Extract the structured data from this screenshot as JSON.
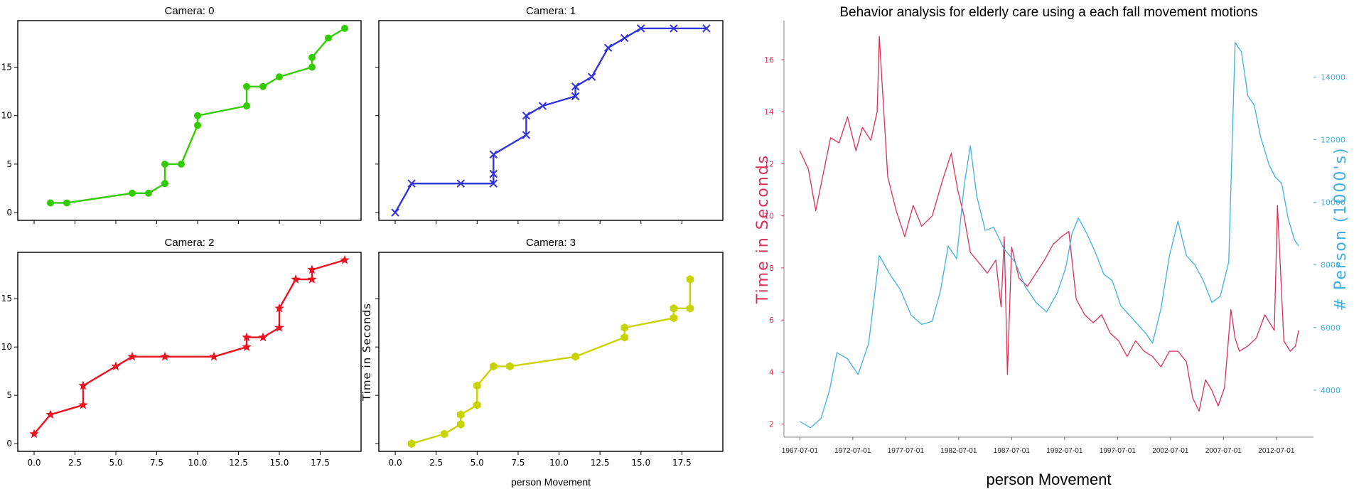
{
  "colors": {
    "green": "#33cc00",
    "blue": "#3333dd",
    "red": "#ee1122",
    "yellow": "#c8d400",
    "crimson": "#d9305a",
    "sky": "#3fb0e0",
    "axis": "#000000"
  },
  "chart_data": [
    {
      "type": "line",
      "title": "Camera: 0",
      "marker": "o",
      "color": "#33cc00",
      "xlim": [
        -1,
        20
      ],
      "ylim": [
        -0.8,
        19.8
      ],
      "xticks": [
        0,
        2.5,
        5,
        7.5,
        10,
        12.5,
        15,
        17.5
      ],
      "yticks": [
        0,
        5,
        10,
        15
      ],
      "ytick_labels": [
        "0",
        "5",
        "10",
        "15"
      ],
      "x": [
        1,
        2,
        6,
        7,
        8,
        8,
        9,
        10,
        10,
        13,
        13,
        14,
        15,
        17,
        17,
        18,
        19
      ],
      "y": [
        1,
        1,
        2,
        2,
        3,
        5,
        5,
        9,
        10,
        11,
        13,
        13,
        14,
        15,
        16,
        18,
        19
      ]
    },
    {
      "type": "line",
      "title": "Camera: 1",
      "marker": "x",
      "color": "#3333dd",
      "xlim": [
        -1,
        20
      ],
      "ylim": [
        -0.8,
        19.8
      ],
      "xticks": [
        0,
        2.5,
        5,
        7.5,
        10,
        12.5,
        15,
        17.5
      ],
      "yticks": [
        0,
        5,
        10,
        15
      ],
      "x": [
        0,
        1,
        4,
        6,
        6,
        6,
        6,
        8,
        8,
        9,
        11,
        11,
        11,
        12,
        13,
        14,
        15,
        17,
        19
      ],
      "y": [
        0,
        3,
        3,
        3,
        4,
        4,
        6,
        8,
        10,
        11,
        12,
        12,
        13,
        14,
        17,
        18,
        19,
        19,
        19
      ]
    },
    {
      "type": "line",
      "title": "Camera: 2",
      "marker": "*",
      "color": "#ee1122",
      "xlim": [
        -1,
        20
      ],
      "ylim": [
        -0.8,
        19.8
      ],
      "xticks": [
        0,
        2.5,
        5,
        7.5,
        10,
        12.5,
        15,
        17.5
      ],
      "xtick_labels": [
        "0.0",
        "2.5",
        "5.0",
        "7.5",
        "10.0",
        "12.5",
        "15.0",
        "17.5"
      ],
      "yticks": [
        0,
        5,
        10,
        15
      ],
      "ytick_labels": [
        "0",
        "5",
        "10",
        "15"
      ],
      "x": [
        0,
        1,
        3,
        3,
        5,
        6,
        8,
        11,
        13,
        13,
        14,
        15,
        15,
        16,
        17,
        17,
        19
      ],
      "y": [
        1,
        3,
        4,
        6,
        8,
        9,
        9,
        9,
        10,
        11,
        11,
        12,
        14,
        17,
        17,
        18,
        19
      ]
    },
    {
      "type": "line",
      "title": "Camera: 3",
      "marker": "h",
      "color": "#c8d400",
      "xlabel": "person Movement",
      "ylabel": "Time in Seconds",
      "xlim": [
        -1,
        20
      ],
      "ylim": [
        -0.8,
        19.8
      ],
      "xticks": [
        0,
        2.5,
        5,
        7.5,
        10,
        12.5,
        15,
        17.5
      ],
      "xtick_labels": [
        "0.0",
        "2.5",
        "5.0",
        "7.5",
        "10.0",
        "12.5",
        "15.0",
        "17.5"
      ],
      "yticks": [
        0,
        5,
        10,
        15
      ],
      "x": [
        1,
        3,
        4,
        4,
        4,
        5,
        5,
        6,
        7,
        11,
        14,
        14,
        17,
        17,
        18,
        18
      ],
      "y": [
        0,
        1,
        2,
        3,
        3,
        4,
        6,
        8,
        8,
        9,
        11,
        12,
        13,
        14,
        14,
        17
      ]
    },
    {
      "type": "line",
      "title": "Behavior analysis for elderly care using a each fall movement motions",
      "xlabel": "person Movement",
      "ylabel": "Time in Seconds",
      "ylabel_right": "# Person (1000's)",
      "x_range": [
        1966,
        2016
      ],
      "xticks": [
        1967.5,
        1972.5,
        1977.5,
        1982.5,
        1987.5,
        1992.5,
        1997.5,
        2002.5,
        2007.5,
        2012.5
      ],
      "xtick_labels": [
        "1967-07-01",
        "1972-07-01",
        "1977-07-01",
        "1982-07-01",
        "1987-07-01",
        "1992-07-01",
        "1997-07-01",
        "2002-07-01",
        "2007-07-01",
        "2012-07-01"
      ],
      "ylim_left": [
        1.5,
        17.5
      ],
      "yticks_left": [
        2,
        4,
        6,
        8,
        10,
        12,
        14,
        16
      ],
      "ylim_right": [
        2500,
        15800
      ],
      "yticks_right": [
        4000,
        6000,
        8000,
        10000,
        12000,
        14000
      ],
      "series": [
        {
          "axis": "left",
          "color": "#d9305a",
          "x": [
            1967.5,
            1968.3,
            1969.0,
            1969.8,
            1970.4,
            1971.2,
            1972.0,
            1972.8,
            1973.4,
            1974.2,
            1974.8,
            1975.0,
            1975.8,
            1976.6,
            1977.4,
            1978.2,
            1979.0,
            1980.0,
            1981.0,
            1981.8,
            1982.4,
            1983.0,
            1983.6,
            1984.4,
            1985.2,
            1986.0,
            1986.5,
            1986.8,
            1987.1,
            1987.5,
            1988.2,
            1989.0,
            1989.8,
            1990.6,
            1991.4,
            1992.2,
            1992.9,
            1993.6,
            1994.4,
            1995.2,
            1996.0,
            1996.8,
            1997.6,
            1998.4,
            1999.2,
            2000.0,
            2000.8,
            2001.6,
            2002.4,
            2003.2,
            2004.0,
            2004.6,
            2005.2,
            2005.8,
            2006.4,
            2007.0,
            2007.6,
            2008.2,
            2008.6,
            2009.0,
            2009.8,
            2010.6,
            2011.4,
            2012.0,
            2012.3,
            2012.6,
            2013.2,
            2013.8,
            2014.3,
            2014.6
          ],
          "y": [
            12.5,
            11.8,
            10.2,
            11.8,
            13.0,
            12.8,
            13.8,
            12.5,
            13.4,
            12.9,
            14.0,
            16.9,
            11.5,
            10.2,
            9.2,
            10.4,
            9.6,
            10.0,
            11.4,
            12.4,
            11.0,
            10.0,
            8.6,
            8.2,
            7.8,
            8.3,
            6.5,
            9.2,
            3.9,
            8.8,
            7.6,
            7.3,
            7.8,
            8.3,
            8.9,
            9.2,
            9.4,
            6.8,
            6.2,
            5.9,
            6.2,
            5.5,
            5.2,
            4.6,
            5.2,
            4.8,
            4.6,
            4.2,
            4.8,
            4.8,
            4.4,
            3.0,
            2.5,
            3.7,
            3.3,
            2.7,
            3.4,
            6.4,
            5.3,
            4.8,
            5.0,
            5.3,
            6.2,
            5.8,
            5.6,
            10.4,
            5.2,
            4.8,
            5.0,
            5.6
          ]
        },
        {
          "axis": "right",
          "color": "#3fb0e0",
          "x": [
            1967.5,
            1968.5,
            1969.5,
            1970.3,
            1971.0,
            1972.0,
            1973.0,
            1974.0,
            1975.0,
            1976.0,
            1977.0,
            1978.0,
            1979.0,
            1980.0,
            1980.8,
            1981.5,
            1982.3,
            1983.0,
            1983.6,
            1984.2,
            1985.0,
            1985.8,
            1986.8,
            1987.8,
            1988.8,
            1989.8,
            1990.8,
            1991.8,
            1992.6,
            1993.2,
            1993.8,
            1994.6,
            1995.4,
            1996.2,
            1997.0,
            1997.8,
            1998.6,
            1999.4,
            2000.2,
            2000.8,
            2001.6,
            2002.4,
            2003.2,
            2004.0,
            2004.8,
            2005.6,
            2006.4,
            2007.2,
            2008.0,
            2008.6,
            2009.2,
            2009.8,
            2010.4,
            2011.0,
            2011.8,
            2012.4,
            2013.0,
            2013.6,
            2014.2,
            2014.6
          ],
          "y": [
            3000,
            2800,
            3100,
            4000,
            5200,
            5000,
            4500,
            5500,
            8300,
            7700,
            7200,
            6400,
            6100,
            6200,
            7200,
            8600,
            8200,
            10500,
            11800,
            10200,
            9100,
            9200,
            8500,
            8100,
            7300,
            6800,
            6500,
            7100,
            7900,
            9000,
            9500,
            9000,
            8400,
            7700,
            7500,
            6700,
            6400,
            6100,
            5800,
            5500,
            6600,
            8300,
            9400,
            8300,
            8000,
            7500,
            6800,
            7000,
            8100,
            15100,
            14800,
            13400,
            13100,
            12100,
            11200,
            10800,
            10600,
            9500,
            8800,
            8600
          ]
        }
      ]
    }
  ]
}
